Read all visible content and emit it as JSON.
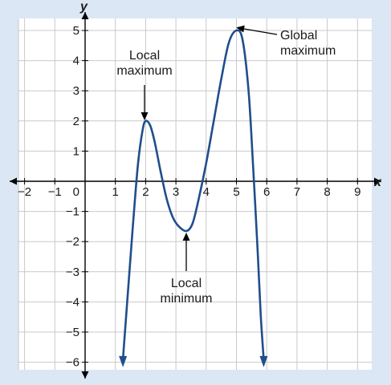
{
  "chart_data": {
    "type": "line",
    "title": "",
    "xlabel": "x",
    "ylabel": "y",
    "xlim": [
      -2,
      9
    ],
    "ylim": [
      -6,
      5
    ],
    "grid": true,
    "xticks": [
      {
        "value": -2,
        "label": "−2"
      },
      {
        "value": -1,
        "label": "−1"
      },
      {
        "value": 0,
        "label": "0"
      },
      {
        "value": 1,
        "label": "1"
      },
      {
        "value": 2,
        "label": "2"
      },
      {
        "value": 3,
        "label": "3"
      },
      {
        "value": 4,
        "label": "4"
      },
      {
        "value": 5,
        "label": "5"
      },
      {
        "value": 6,
        "label": "6"
      },
      {
        "value": 7,
        "label": "7"
      },
      {
        "value": 8,
        "label": "8"
      },
      {
        "value": 9,
        "label": "9"
      }
    ],
    "yticks": [
      {
        "value": 5,
        "label": "5"
      },
      {
        "value": 4,
        "label": "4"
      },
      {
        "value": 3,
        "label": "3"
      },
      {
        "value": 2,
        "label": "2"
      },
      {
        "value": 1,
        "label": "1"
      },
      {
        "value": -1,
        "label": "−1"
      },
      {
        "value": -2,
        "label": "−2"
      },
      {
        "value": -3,
        "label": "−3"
      },
      {
        "value": -4,
        "label": "−4"
      },
      {
        "value": -5,
        "label": "−5"
      },
      {
        "value": -6,
        "label": "−6"
      }
    ],
    "series": [
      {
        "color": "#1f4e8c",
        "points": [
          [
            1.25,
            -5.9
          ],
          [
            1.45,
            -3.2
          ],
          [
            1.6,
            -1.2
          ],
          [
            1.75,
            0.6
          ],
          [
            1.9,
            1.7
          ],
          [
            2.0,
            2.0
          ],
          [
            2.15,
            1.85
          ],
          [
            2.3,
            1.3
          ],
          [
            2.5,
            0.3
          ],
          [
            2.7,
            -0.6
          ],
          [
            2.9,
            -1.2
          ],
          [
            3.1,
            -1.5
          ],
          [
            3.35,
            -1.65
          ],
          [
            3.55,
            -1.4
          ],
          [
            3.75,
            -0.6
          ],
          [
            4.0,
            0.6
          ],
          [
            4.25,
            2.0
          ],
          [
            4.5,
            3.4
          ],
          [
            4.75,
            4.6
          ],
          [
            5.0,
            5.0
          ],
          [
            5.2,
            4.7
          ],
          [
            5.4,
            3.0
          ],
          [
            5.55,
            0.5
          ],
          [
            5.7,
            -2.3
          ],
          [
            5.8,
            -4.4
          ],
          [
            5.9,
            -5.9
          ]
        ]
      }
    ],
    "annotations": [
      {
        "lines": [
          "Local",
          "maximum"
        ],
        "target": [
          2,
          2
        ]
      },
      {
        "lines": [
          "Local",
          "minimum"
        ],
        "target": [
          3.35,
          -1.65
        ]
      },
      {
        "lines": [
          "Global",
          "maximum"
        ],
        "target": [
          5,
          5
        ]
      }
    ]
  }
}
